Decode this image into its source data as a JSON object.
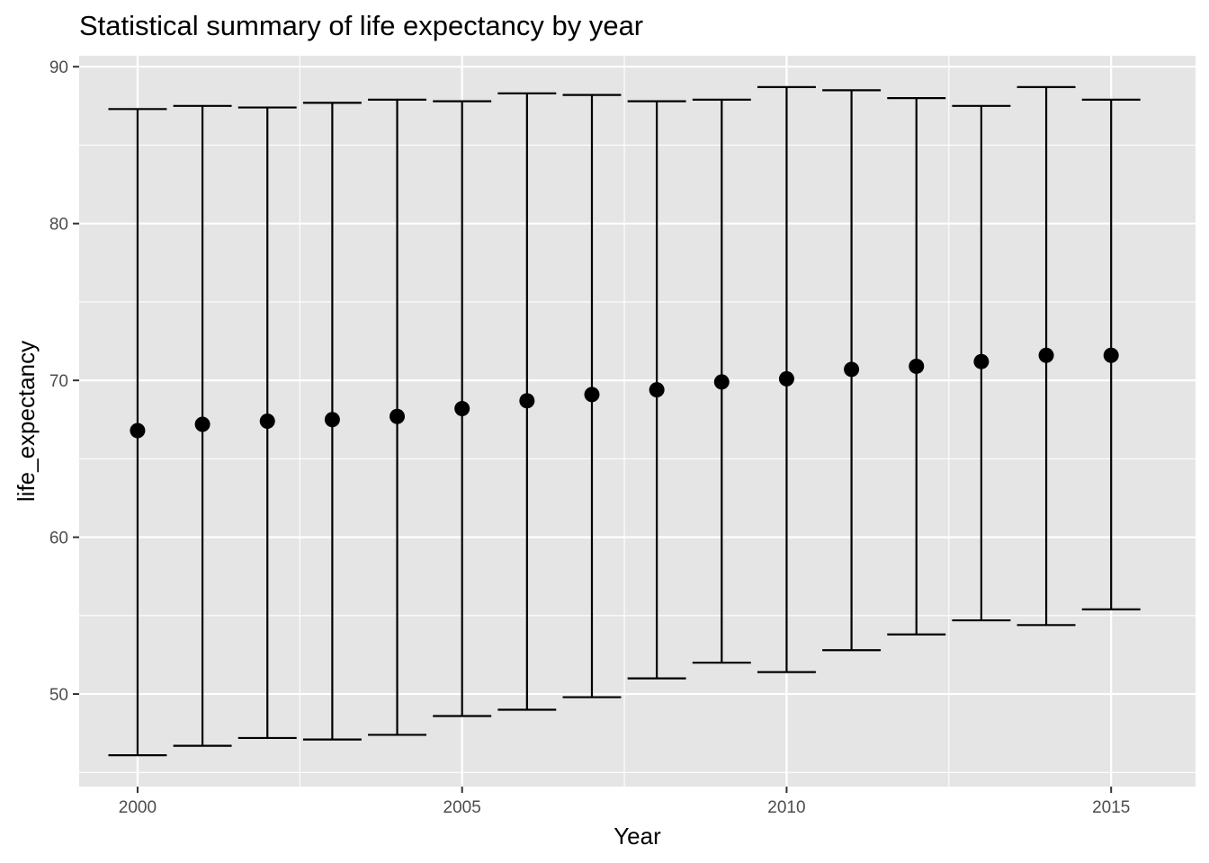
{
  "chart_data": {
    "type": "errorbar",
    "title": "Statistical summary of life expectancy by year",
    "xlabel": "Year",
    "ylabel": "life_expectancy",
    "xlim": [
      1999.1,
      2016.3
    ],
    "ylim": [
      44.1,
      90.7
    ],
    "x_ticks": [
      2000,
      2005,
      2010,
      2015
    ],
    "y_ticks": [
      50,
      60,
      70,
      80,
      90
    ],
    "grid": true,
    "background": "#e5e5e5",
    "mark_color": "#000000",
    "points": [
      {
        "x": 2000,
        "mean": 66.8,
        "min": 46.1,
        "max": 87.3
      },
      {
        "x": 2001,
        "mean": 67.2,
        "min": 46.7,
        "max": 87.5
      },
      {
        "x": 2002,
        "mean": 67.4,
        "min": 47.2,
        "max": 87.4
      },
      {
        "x": 2003,
        "mean": 67.5,
        "min": 47.1,
        "max": 87.7
      },
      {
        "x": 2004,
        "mean": 67.7,
        "min": 47.4,
        "max": 87.9
      },
      {
        "x": 2005,
        "mean": 68.2,
        "min": 48.6,
        "max": 87.8
      },
      {
        "x": 2006,
        "mean": 68.7,
        "min": 49.0,
        "max": 88.3
      },
      {
        "x": 2007,
        "mean": 69.1,
        "min": 49.8,
        "max": 88.2
      },
      {
        "x": 2008,
        "mean": 69.4,
        "min": 51.0,
        "max": 87.8
      },
      {
        "x": 2009,
        "mean": 69.9,
        "min": 52.0,
        "max": 87.9
      },
      {
        "x": 2010,
        "mean": 70.1,
        "min": 51.4,
        "max": 88.7
      },
      {
        "x": 2011,
        "mean": 70.7,
        "min": 52.8,
        "max": 88.5
      },
      {
        "x": 2012,
        "mean": 70.9,
        "min": 53.8,
        "max": 88.0
      },
      {
        "x": 2013,
        "mean": 71.2,
        "min": 54.7,
        "max": 87.5
      },
      {
        "x": 2014,
        "mean": 71.6,
        "min": 54.4,
        "max": 88.7
      },
      {
        "x": 2015,
        "mean": 71.6,
        "min": 55.4,
        "max": 87.9
      }
    ]
  }
}
